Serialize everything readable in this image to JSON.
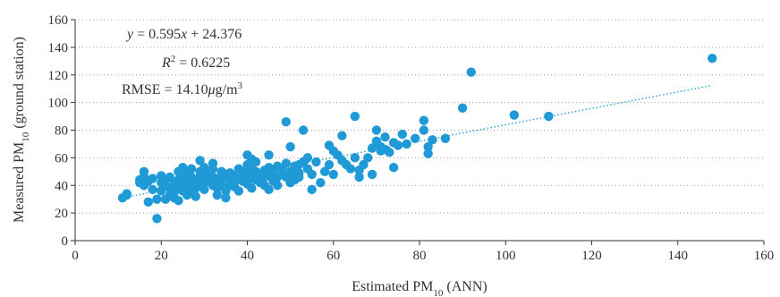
{
  "chart_data": {
    "type": "scatter",
    "xlabel": {
      "main": "Estimated PM",
      "sub": "10",
      "tail": " (ANN)"
    },
    "ylabel": {
      "main": "Measured PM",
      "sub": "10",
      "tail": " (ground station)"
    },
    "xlim": [
      0,
      160
    ],
    "ylim": [
      0,
      160
    ],
    "xticks": [
      0,
      20,
      40,
      60,
      80,
      100,
      120,
      140,
      160
    ],
    "yticks": [
      0,
      20,
      40,
      60,
      80,
      100,
      120,
      140,
      160
    ],
    "grid": "horizontal-dotted",
    "point_color": "#1f9ad6",
    "trendline_color": "#1f9ad6",
    "trendline": {
      "slope": 0.595,
      "intercept": 24.376,
      "x_range": [
        10,
        148
      ]
    },
    "annotations": {
      "equation": {
        "y": "y",
        "eq": " = 0.595",
        "x": "x",
        "rest": " + 24.376"
      },
      "r2": {
        "R": "R",
        "sup": "2",
        "rest": " = 0.6225"
      },
      "rmse": {
        "label": "RMSE = 14.10",
        "mu": "μ",
        "unit": "g/m",
        "sup": "3"
      }
    },
    "points": [
      [
        11,
        31
      ],
      [
        12,
        33
      ],
      [
        12,
        34
      ],
      [
        15,
        42
      ],
      [
        15,
        44
      ],
      [
        16,
        50
      ],
      [
        16,
        46
      ],
      [
        16,
        40
      ],
      [
        17,
        28
      ],
      [
        17,
        43
      ],
      [
        18,
        37
      ],
      [
        18,
        45
      ],
      [
        19,
        30
      ],
      [
        19,
        16
      ],
      [
        20,
        42
      ],
      [
        20,
        47
      ],
      [
        20,
        36
      ],
      [
        21,
        40
      ],
      [
        21,
        30
      ],
      [
        21,
        44
      ],
      [
        22,
        46
      ],
      [
        22,
        38
      ],
      [
        22,
        33
      ],
      [
        23,
        41
      ],
      [
        23,
        35
      ],
      [
        23,
        31
      ],
      [
        24,
        50
      ],
      [
        24,
        44
      ],
      [
        24,
        38
      ],
      [
        24,
        29
      ],
      [
        25,
        53
      ],
      [
        25,
        47
      ],
      [
        25,
        41
      ],
      [
        25,
        36
      ],
      [
        26,
        48
      ],
      [
        26,
        43
      ],
      [
        26,
        39
      ],
      [
        26,
        33
      ],
      [
        27,
        52
      ],
      [
        27,
        46
      ],
      [
        27,
        40
      ],
      [
        27,
        35
      ],
      [
        28,
        44
      ],
      [
        28,
        38
      ],
      [
        28,
        32
      ],
      [
        29,
        58
      ],
      [
        29,
        50
      ],
      [
        29,
        46
      ],
      [
        29,
        41
      ],
      [
        30,
        53
      ],
      [
        30,
        47
      ],
      [
        30,
        42
      ],
      [
        30,
        37
      ],
      [
        31,
        48
      ],
      [
        31,
        43
      ],
      [
        32,
        56
      ],
      [
        32,
        52
      ],
      [
        32,
        46
      ],
      [
        32,
        40
      ],
      [
        33,
        45
      ],
      [
        33,
        38
      ],
      [
        33,
        33
      ],
      [
        34,
        50
      ],
      [
        34,
        44
      ],
      [
        34,
        41
      ],
      [
        35,
        48
      ],
      [
        35,
        36
      ],
      [
        35,
        31
      ],
      [
        36,
        49
      ],
      [
        36,
        44
      ],
      [
        36,
        40
      ],
      [
        37,
        47
      ],
      [
        37,
        42
      ],
      [
        37,
        39
      ],
      [
        38,
        52
      ],
      [
        38,
        45
      ],
      [
        38,
        36
      ],
      [
        39,
        50
      ],
      [
        39,
        43
      ],
      [
        40,
        62
      ],
      [
        40,
        55
      ],
      [
        40,
        48
      ],
      [
        40,
        41
      ],
      [
        41,
        59
      ],
      [
        41,
        52
      ],
      [
        41,
        45
      ],
      [
        41,
        38
      ],
      [
        42,
        57
      ],
      [
        42,
        50
      ],
      [
        42,
        44
      ],
      [
        43,
        48
      ],
      [
        43,
        42
      ],
      [
        44,
        51
      ],
      [
        44,
        46
      ],
      [
        44,
        40
      ],
      [
        45,
        62
      ],
      [
        45,
        53
      ],
      [
        45,
        47
      ],
      [
        45,
        37
      ],
      [
        46,
        49
      ],
      [
        46,
        43
      ],
      [
        47,
        54
      ],
      [
        47,
        46
      ],
      [
        47,
        40
      ],
      [
        48,
        52
      ],
      [
        48,
        48
      ],
      [
        49,
        86
      ],
      [
        49,
        56
      ],
      [
        49,
        46
      ],
      [
        50,
        68
      ],
      [
        50,
        50
      ],
      [
        50,
        42
      ],
      [
        51,
        54
      ],
      [
        51,
        48
      ],
      [
        51,
        44
      ],
      [
        52,
        55
      ],
      [
        52,
        49
      ],
      [
        52,
        46
      ],
      [
        53,
        80
      ],
      [
        53,
        57
      ],
      [
        54,
        60
      ],
      [
        54,
        52
      ],
      [
        55,
        48
      ],
      [
        55,
        37
      ],
      [
        56,
        57
      ],
      [
        57,
        42
      ],
      [
        58,
        50
      ],
      [
        59,
        69
      ],
      [
        59,
        55
      ],
      [
        60,
        65
      ],
      [
        60,
        48
      ],
      [
        61,
        62
      ],
      [
        62,
        76
      ],
      [
        62,
        58
      ],
      [
        63,
        55
      ],
      [
        64,
        52
      ],
      [
        65,
        90
      ],
      [
        65,
        60
      ],
      [
        66,
        51
      ],
      [
        66,
        46
      ],
      [
        67,
        55
      ],
      [
        68,
        60
      ],
      [
        69,
        48
      ],
      [
        69,
        67
      ],
      [
        70,
        72
      ],
      [
        70,
        80
      ],
      [
        71,
        65
      ],
      [
        71,
        68
      ],
      [
        72,
        75
      ],
      [
        72,
        66
      ],
      [
        73,
        64
      ],
      [
        74,
        71
      ],
      [
        74,
        53
      ],
      [
        75,
        69
      ],
      [
        76,
        77
      ],
      [
        77,
        70
      ],
      [
        79,
        74
      ],
      [
        81,
        87
      ],
      [
        81,
        80
      ],
      [
        82,
        63
      ],
      [
        82,
        68
      ],
      [
        83,
        73
      ],
      [
        86,
        74
      ],
      [
        90,
        96
      ],
      [
        92,
        122
      ],
      [
        102,
        91
      ],
      [
        110,
        90
      ],
      [
        148,
        132
      ]
    ]
  }
}
